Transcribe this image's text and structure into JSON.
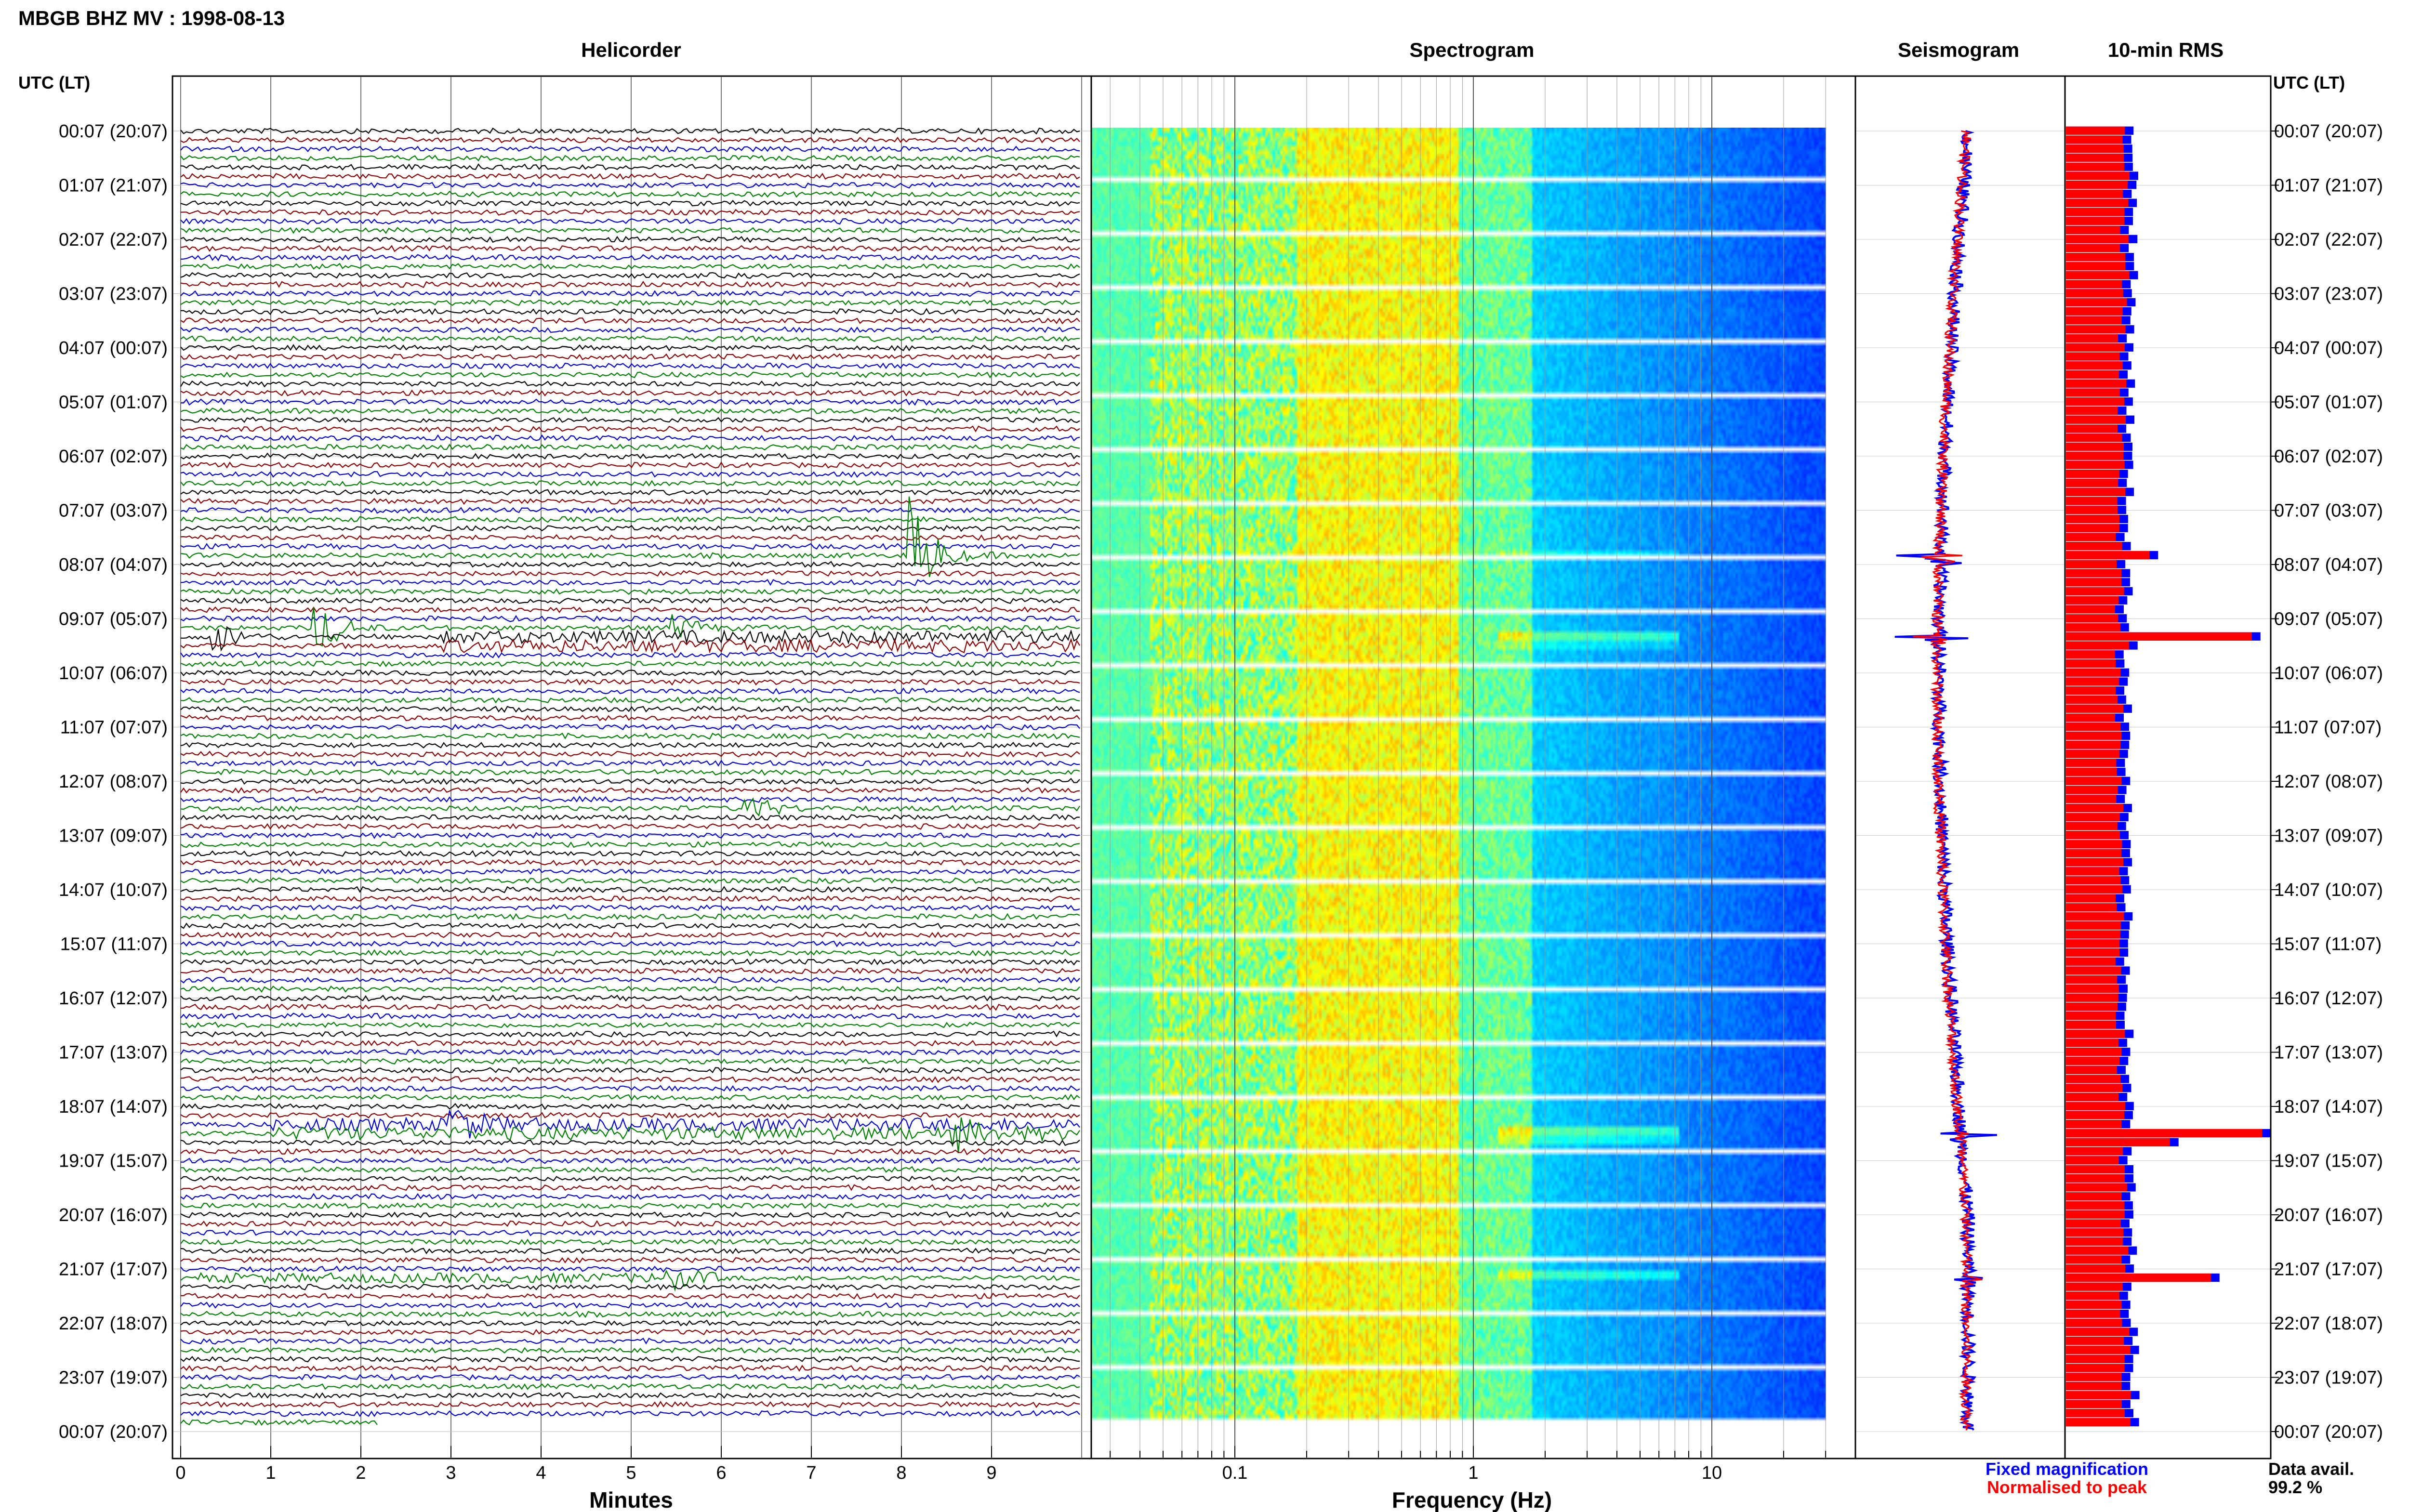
{
  "header": {
    "station_title": "MBGB BHZ MV : 1998-08-13"
  },
  "panels": {
    "helicorder": "Helicorder",
    "spectrogram": "Spectrogram",
    "seismogram": "Seismogram",
    "rms": "10-min RMS"
  },
  "axis": {
    "time_label_left": "UTC (LT)",
    "time_label_right": "UTC (LT)",
    "helicorder_xlabel": "Minutes",
    "spectrogram_xlabel": "Frequency (Hz)"
  },
  "legend": {
    "fixed": "Fixed magnification",
    "normalised": "Normalised to peak",
    "data_avail_label": "Data avail.",
    "data_avail_value": "99.2 %"
  },
  "colors": {
    "trace_cycle": [
      "#000000",
      "#8b0000",
      "#0000cc",
      "#008000"
    ],
    "fixed": "#0000ff",
    "normalised": "#ff0000"
  },
  "chart_data": {
    "type": "helicorder",
    "time_labels": [
      "00:07 (20:07)",
      "01:07 (21:07)",
      "02:07 (22:07)",
      "03:07 (23:07)",
      "04:07 (00:07)",
      "05:07 (01:07)",
      "06:07 (02:07)",
      "07:07 (03:07)",
      "08:07 (04:07)",
      "09:07 (05:07)",
      "10:07 (06:07)",
      "11:07 (07:07)",
      "12:07 (08:07)",
      "13:07 (09:07)",
      "14:07 (10:07)",
      "15:07 (11:07)",
      "16:07 (12:07)",
      "17:07 (13:07)",
      "18:07 (14:07)",
      "19:07 (15:07)",
      "20:07 (16:07)",
      "21:07 (17:07)",
      "22:07 (18:07)",
      "23:07 (19:07)",
      "00:07 (20:07)"
    ],
    "minute_ticks": [
      "0",
      "1",
      "2",
      "3",
      "4",
      "5",
      "6",
      "7",
      "8",
      "9"
    ],
    "minutes_range": [
      0,
      10
    ],
    "freq_ticks": [
      "0.1",
      "1",
      "10"
    ],
    "freq_range": [
      0.025,
      40
    ],
    "freq_scale": "log",
    "trace_count": 144,
    "events": [
      {
        "row": 47,
        "minute": 8.1,
        "amp": 3.0
      },
      {
        "row": 55,
        "minute": 1.5,
        "amp": 1.4
      },
      {
        "row": 56,
        "minute": 0.4,
        "amp": 0.8
      },
      {
        "row": 55,
        "minute": 5.5,
        "amp": 0.6
      },
      {
        "row": 75,
        "minute": 6.3,
        "amp": 0.7
      },
      {
        "row": 110,
        "minute": 3.0,
        "amp": 1.0
      },
      {
        "row": 111,
        "minute": 8.6,
        "amp": 0.8
      },
      {
        "row": 127,
        "minute": 5.4,
        "amp": 0.5
      }
    ],
    "rms_spikes": [
      {
        "row": 47,
        "value": 0.45
      },
      {
        "row": 56,
        "value": 0.95
      },
      {
        "row": 57,
        "value": 0.35
      },
      {
        "row": 111,
        "value": 1.0
      },
      {
        "row": 112,
        "value": 0.55
      },
      {
        "row": 127,
        "value": 0.75
      }
    ],
    "rms_base": 0.35,
    "seismogram_spikes": [
      {
        "row": 47,
        "amp": 1.0
      },
      {
        "row": 56,
        "amp": 0.55
      },
      {
        "row": 111,
        "amp": 0.45
      },
      {
        "row": 127,
        "amp": 0.2
      }
    ]
  }
}
